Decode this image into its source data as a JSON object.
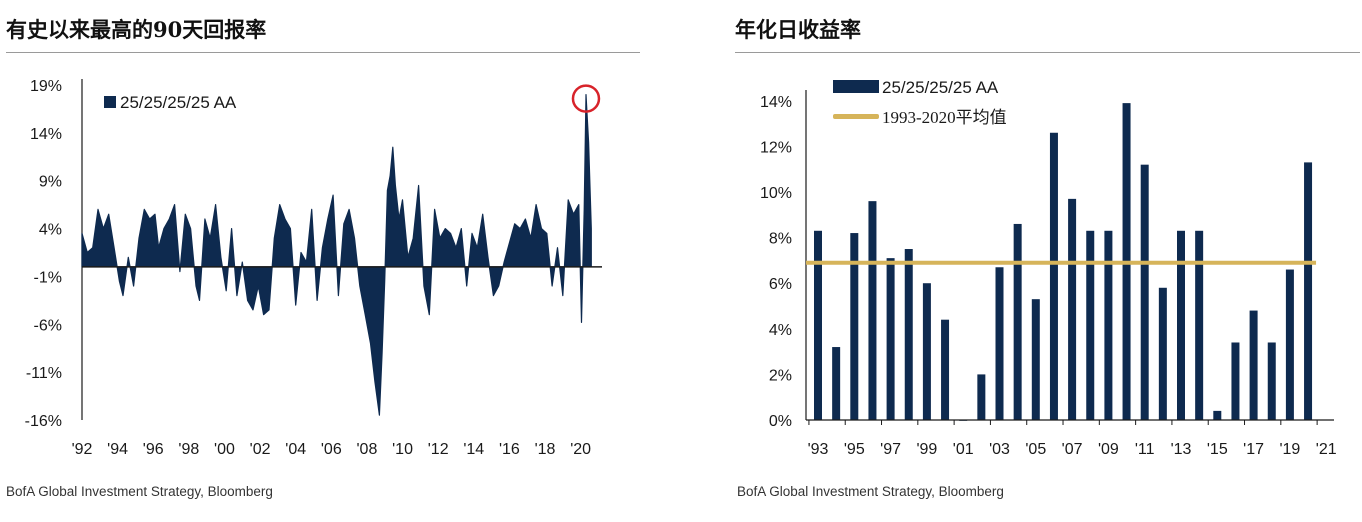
{
  "left": {
    "title": "有史以来最高的90天回报率",
    "source": "BofA Global Investment Strategy, Bloomberg"
  },
  "right": {
    "title": "年化日收益率",
    "source": "BofA Global Investment Strategy, Bloomberg"
  },
  "colors": {
    "series": "#0e2a4f",
    "average_line": "#d6b45a",
    "highlight_circle": "#d8232a",
    "axis": "#1a1a1a"
  },
  "chart_data": [
    {
      "type": "line",
      "title": "有史以来最高的90天回报率",
      "legend": [
        "25/25/25/25 AA"
      ],
      "y_tick_labels": [
        "19%",
        "14%",
        "9%",
        "4%",
        "-1%",
        "-6%",
        "-11%",
        "-16%"
      ],
      "y_ticks": [
        19,
        14,
        9,
        4,
        -1,
        -6,
        -11,
        -16
      ],
      "ylim": [
        -16,
        19
      ],
      "x_tick_labels": [
        "'92",
        "'94",
        "'96",
        "'98",
        "'00",
        "'02",
        "'04",
        "'06",
        "'08",
        "'10",
        "'12",
        "'14",
        "'16",
        "'18",
        "'20"
      ],
      "x_ticks": [
        1992,
        1994,
        1996,
        1998,
        2000,
        2002,
        2004,
        2006,
        2008,
        2010,
        2012,
        2014,
        2016,
        2018,
        2020
      ],
      "xlim": [
        1992,
        2021.2
      ],
      "fill_baseline": 0,
      "annotation": "red circle at 2020 peak (~18%)",
      "series": [
        {
          "name": "25/25/25/25 AA",
          "x": [
            1992.0,
            1992.3,
            1992.6,
            1992.9,
            1993.2,
            1993.5,
            1993.8,
            1994.1,
            1994.3,
            1994.6,
            1994.9,
            1995.2,
            1995.5,
            1995.8,
            1996.1,
            1996.3,
            1996.6,
            1996.9,
            1997.2,
            1997.5,
            1997.8,
            1998.1,
            1998.4,
            1998.6,
            1998.9,
            1999.2,
            1999.5,
            1999.8,
            2000.1,
            2000.4,
            2000.7,
            2001.0,
            2001.3,
            2001.6,
            2001.9,
            2002.2,
            2002.5,
            2002.8,
            2003.1,
            2003.4,
            2003.7,
            2004.0,
            2004.3,
            2004.6,
            2004.9,
            2005.2,
            2005.5,
            2005.8,
            2006.1,
            2006.4,
            2006.7,
            2007.0,
            2007.3,
            2007.6,
            2007.9,
            2008.2,
            2008.45,
            2008.7,
            2008.85,
            2009.0,
            2009.15,
            2009.3,
            2009.45,
            2009.6,
            2009.8,
            2010.0,
            2010.3,
            2010.6,
            2010.9,
            2011.2,
            2011.5,
            2011.8,
            2012.1,
            2012.4,
            2012.7,
            2013.0,
            2013.3,
            2013.6,
            2013.9,
            2014.2,
            2014.5,
            2014.8,
            2015.1,
            2015.4,
            2015.7,
            2016.0,
            2016.3,
            2016.6,
            2016.9,
            2017.2,
            2017.5,
            2017.8,
            2018.1,
            2018.4,
            2018.7,
            2019.0,
            2019.3,
            2019.6,
            2019.9,
            2020.05,
            2020.2,
            2020.3,
            2020.45,
            2020.6
          ],
          "values": [
            3.5,
            1.5,
            2.0,
            6.0,
            4.0,
            5.5,
            2.0,
            -1.5,
            -3.0,
            1.0,
            -2.0,
            3.0,
            6.0,
            5.0,
            5.5,
            2.0,
            4.0,
            5.0,
            6.5,
            -0.5,
            5.5,
            4.0,
            -2.0,
            -3.5,
            5.0,
            3.0,
            6.5,
            1.0,
            -2.5,
            4.0,
            -3.0,
            0.5,
            -3.5,
            -4.5,
            -2.0,
            -5.0,
            -4.5,
            3.0,
            6.5,
            5.0,
            4.0,
            -4.0,
            1.5,
            0.5,
            6.0,
            -3.5,
            2.0,
            5.0,
            7.5,
            -3.0,
            4.5,
            6.0,
            3.0,
            -2.0,
            -5.0,
            -8.0,
            -12.0,
            -15.5,
            -9.0,
            -1.5,
            8.0,
            9.5,
            12.5,
            8.5,
            5.0,
            7.0,
            1.0,
            3.0,
            8.5,
            -2.0,
            -5.0,
            6.0,
            3.0,
            4.0,
            3.5,
            2.0,
            4.0,
            -2.0,
            3.5,
            2.0,
            5.5,
            1.0,
            -3.0,
            -2.0,
            0.5,
            2.5,
            4.5,
            4.0,
            5.0,
            3.0,
            6.5,
            4.0,
            3.5,
            -2.0,
            2.0,
            -3.0,
            7.0,
            5.5,
            6.5,
            -5.8,
            6.0,
            18.0,
            13.0,
            4.0
          ]
        }
      ]
    },
    {
      "type": "bar",
      "title": "年化日收益率",
      "legend": [
        "25/25/25/25 AA",
        "1993-2020平均值"
      ],
      "y_tick_labels": [
        "0%",
        "2%",
        "4%",
        "6%",
        "8%",
        "10%",
        "12%",
        "14%"
      ],
      "y_ticks": [
        0,
        2,
        4,
        6,
        8,
        10,
        12,
        14
      ],
      "ylim": [
        0,
        14.3
      ],
      "x_tick_labels": [
        "'93",
        "'95",
        "'97",
        "'99",
        "'01",
        "'03",
        "'05",
        "'07",
        "'09",
        "'11",
        "'13",
        "'15",
        "'17",
        "'19",
        "'21"
      ],
      "categories": [
        1993,
        1994,
        1995,
        1996,
        1997,
        1998,
        1999,
        2000,
        2001,
        2002,
        2003,
        2004,
        2005,
        2006,
        2007,
        2008,
        2009,
        2010,
        2011,
        2012,
        2013,
        2014,
        2015,
        2016,
        2017,
        2018,
        2019,
        2020
      ],
      "series": [
        {
          "name": "25/25/25/25 AA",
          "values": [
            8.3,
            3.2,
            8.2,
            9.6,
            7.1,
            7.5,
            6.0,
            4.4,
            0.0,
            2.0,
            6.7,
            8.6,
            5.3,
            12.6,
            9.7,
            8.3,
            8.3,
            13.9,
            11.2,
            5.8,
            8.3,
            8.3,
            0.4,
            3.4,
            4.8,
            3.4,
            6.6,
            11.3
          ]
        }
      ],
      "average_value": 6.9
    }
  ]
}
